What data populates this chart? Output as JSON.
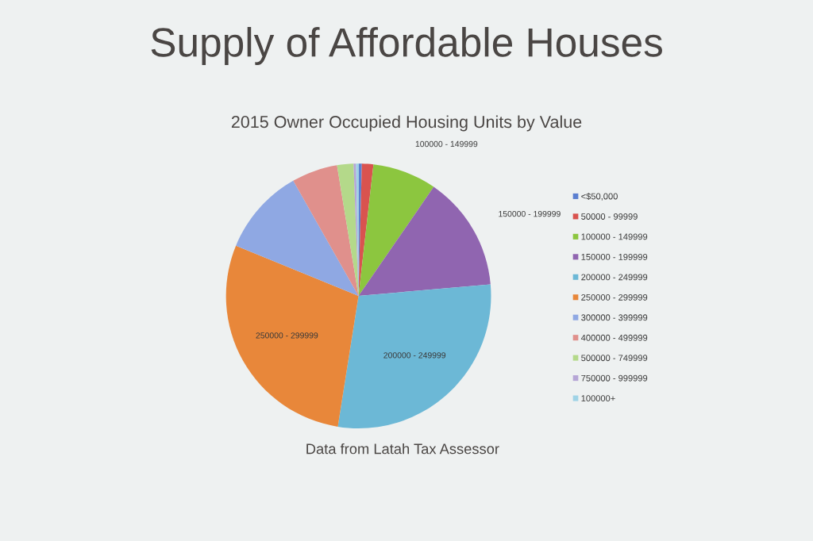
{
  "chart_data": {
    "type": "pie",
    "title": "Supply of Affordable Houses",
    "subtitle": "2015 Owner Occupied Housing Units by Value",
    "categories": [
      "<$50,000",
      "50000 - 99999",
      "100000 - 149999",
      "150000 - 199999",
      "200000 - 249999",
      "250000 - 299999",
      "300000 - 399999",
      "400000 - 499999",
      "500000 - 749999",
      "750000 - 999999",
      "100000+"
    ],
    "values": [
      0.4,
      1.4,
      7.8,
      14,
      28.9,
      28.7,
      10.6,
      5.6,
      2.0,
      0.3,
      0.3
    ],
    "colors": [
      "#5b7fd0",
      "#d9534f",
      "#8cc63f",
      "#9065b0",
      "#6cb8d6",
      "#e8873a",
      "#8fa8e3",
      "#e0908c",
      "#b4d98a",
      "#b6a6d6",
      "#9fd3e6"
    ],
    "legend": "right",
    "annotations": [
      {
        "text": "100000 - 149999",
        "x": "100000 - 149999"
      },
      {
        "text": "150000 - 199999",
        "x": "150000 - 199999"
      },
      {
        "text": "200000 - 249999",
        "x": "200000 - 249999"
      },
      {
        "text": "250000 - 299999",
        "x": "250000 - 299999"
      },
      "Data from Latah Tax Assessor"
    ]
  }
}
